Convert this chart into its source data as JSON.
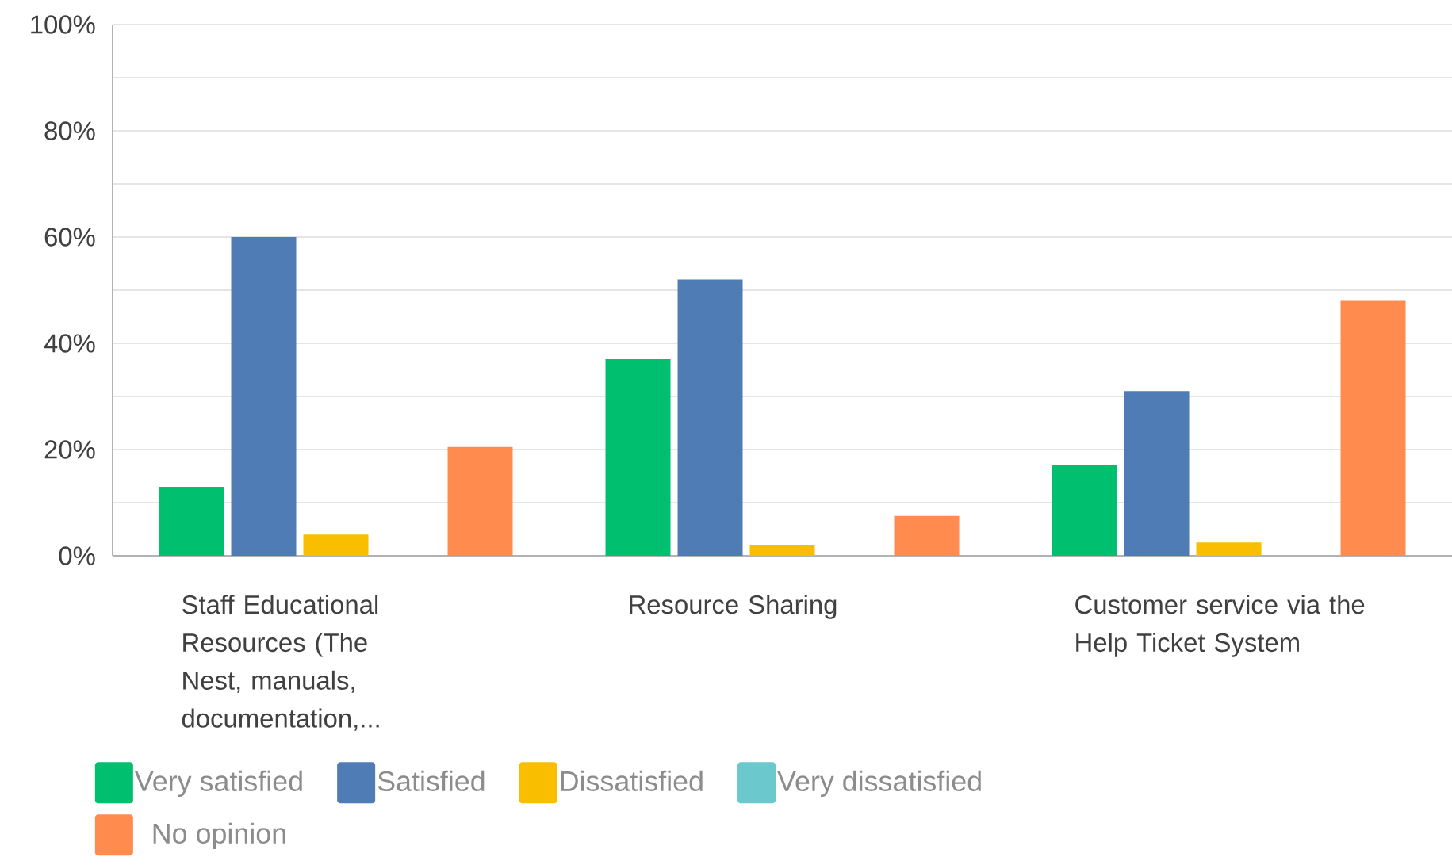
{
  "chart_data": {
    "type": "bar",
    "categories": [
      "Staff Educational Resources (The Nest, manuals, documentation,...",
      "Resource Sharing",
      "Customer service via the Help Ticket System"
    ],
    "series": [
      {
        "name": "Very satisfied",
        "color": "#00bf6f",
        "values": [
          13,
          37,
          17
        ]
      },
      {
        "name": "Satisfied",
        "color": "#507cb6",
        "values": [
          60,
          52,
          31
        ]
      },
      {
        "name": "Dissatisfied",
        "color": "#f9be00",
        "values": [
          4,
          2,
          2.5
        ]
      },
      {
        "name": "Very dissatisfied",
        "color": "#6bc8cd",
        "values": [
          0,
          0,
          0
        ]
      },
      {
        "name": "No opinion",
        "color": "#ff8b4f",
        "values": [
          20.5,
          7.5,
          48
        ]
      }
    ],
    "ylim": [
      0,
      100
    ],
    "yticks": [
      {
        "value": 0,
        "label": "0%"
      },
      {
        "value": 10,
        "label": null
      },
      {
        "value": 20,
        "label": "20%"
      },
      {
        "value": 30,
        "label": null
      },
      {
        "value": 40,
        "label": "40%"
      },
      {
        "value": 50,
        "label": null
      },
      {
        "value": 60,
        "label": "60%"
      },
      {
        "value": 70,
        "label": null
      },
      {
        "value": 80,
        "label": "80%"
      },
      {
        "value": 90,
        "label": null
      },
      {
        "value": 100,
        "label": "100%"
      }
    ],
    "grid": "y",
    "legend": "bottom"
  }
}
